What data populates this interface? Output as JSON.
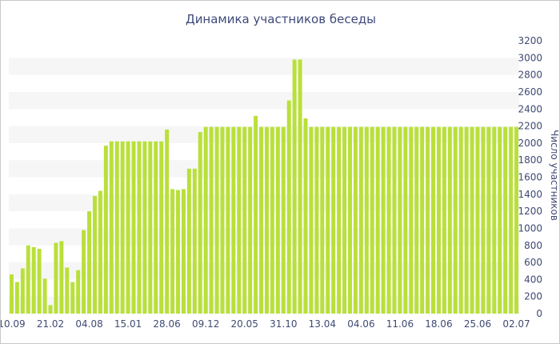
{
  "chart_data": {
    "type": "bar",
    "title": "Динамика участников беседы",
    "ylabel": "Число участников",
    "xlabel": "",
    "ylim": [
      0,
      3200
    ],
    "yticks": [
      0,
      200,
      400,
      600,
      800,
      1000,
      1200,
      1400,
      1600,
      1800,
      2000,
      2200,
      2400,
      2600,
      2800,
      3000,
      3200
    ],
    "x_tick_labels": [
      "10.09",
      "21.02",
      "04.08",
      "15.01",
      "28.06",
      "09.12",
      "20.05",
      "31.10",
      "13.04",
      "04.06",
      "11.06",
      "18.06",
      "25.06",
      "02.07"
    ],
    "x_tick_positions": [
      0,
      7,
      14,
      21,
      28,
      35,
      42,
      49,
      56,
      63,
      70,
      77,
      84,
      91
    ],
    "y_axis_position": "right",
    "grid": "horizontal bands",
    "colors": {
      "bar": "#b9e03a",
      "band": "#f6f6f6",
      "text": "#3f4a73",
      "title": "#3e4a7a"
    },
    "values": [
      460,
      370,
      530,
      800,
      780,
      760,
      410,
      100,
      830,
      850,
      540,
      370,
      510,
      980,
      1200,
      1380,
      1440,
      1970,
      2020,
      2020,
      2020,
      2020,
      2020,
      2020,
      2020,
      2020,
      2020,
      2020,
      2160,
      1460,
      1450,
      1460,
      1700,
      1700,
      2130,
      2190,
      2190,
      2190,
      2190,
      2190,
      2190,
      2190,
      2190,
      2190,
      2320,
      2190,
      2190,
      2190,
      2190,
      2190,
      2500,
      2980,
      2980,
      2290,
      2190,
      2190,
      2190,
      2190,
      2190,
      2190,
      2190,
      2190,
      2190,
      2190,
      2190,
      2190,
      2190,
      2190,
      2190,
      2190,
      2190,
      2190,
      2190,
      2190,
      2190,
      2190,
      2190,
      2190,
      2190,
      2190,
      2190,
      2190,
      2190,
      2190,
      2190,
      2190,
      2190,
      2190,
      2190,
      2190,
      2190,
      2190
    ]
  }
}
